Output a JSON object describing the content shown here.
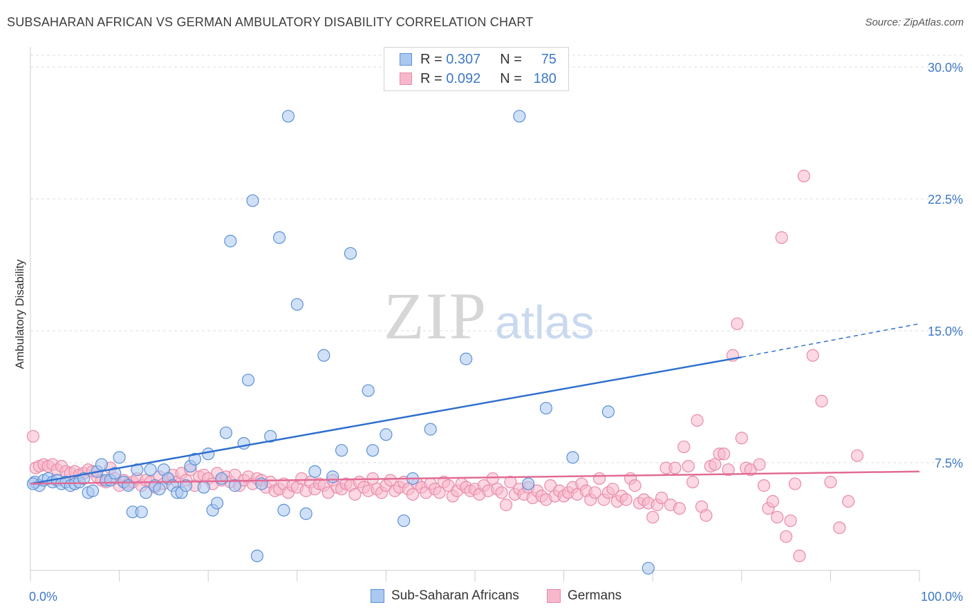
{
  "title": "SUBSAHARAN AFRICAN VS GERMAN AMBULATORY DISABILITY CORRELATION CHART",
  "source": "Source: ZipAtlas.com",
  "watermark": {
    "zip": "ZIP",
    "atlas": "atlas"
  },
  "legend": {
    "rows": [
      {
        "r_label": "R =",
        "r_value": "0.307",
        "n_label": "N =",
        "n_value": "75"
      },
      {
        "r_label": "R =",
        "r_value": "0.092",
        "n_label": "N =",
        "n_value": "180"
      }
    ]
  },
  "colors": {
    "blue_fill": "#aac8f0",
    "blue_stroke": "#5b8fd6",
    "blue_line": "#2f6fcf",
    "pink_fill": "#f7b8cc",
    "pink_stroke": "#e88aa8",
    "pink_line": "#e26a95",
    "tick_label": "#3e78c8",
    "grid": "#dddddd"
  },
  "chart_data": {
    "type": "scatter",
    "xlabel": "",
    "ylabel": "Ambulatory Disability",
    "xlim": [
      0,
      100
    ],
    "ylim": [
      0,
      31
    ],
    "x_tick_labels": [
      "0.0%",
      "100.0%"
    ],
    "y_ticks": [
      7.5,
      15.0,
      22.5,
      30.0
    ],
    "y_tick_labels": [
      "7.5%",
      "15.0%",
      "22.5%",
      "30.0%"
    ],
    "grid": "horizontal dashed",
    "legend_position": "top-center",
    "series": [
      {
        "name": "Sub-Saharan Africans",
        "color": "#aac8f0",
        "trend": {
          "x0": 0,
          "y0": 6.3,
          "x1": 80,
          "y1": 13.5,
          "dashed_to_x": 100,
          "dashed_y": 15.4
        },
        "points": [
          [
            0.5,
            6.4
          ],
          [
            1,
            6.2
          ],
          [
            1.5,
            6.5
          ],
          [
            2,
            6.6
          ],
          [
            2.5,
            6.4
          ],
          [
            3,
            6.5
          ],
          [
            3.5,
            6.3
          ],
          [
            4,
            6.4
          ],
          [
            4.5,
            6.2
          ],
          [
            5,
            6.3
          ],
          [
            5.5,
            6.4
          ],
          [
            6,
            6.6
          ],
          [
            6.5,
            5.8
          ],
          [
            7,
            5.9
          ],
          [
            7.5,
            7.0
          ],
          [
            8,
            7.4
          ],
          [
            8.5,
            6.5
          ],
          [
            9,
            6.5
          ],
          [
            9.5,
            6.9
          ],
          [
            10,
            7.8
          ],
          [
            10.5,
            6.4
          ],
          [
            11,
            6.2
          ],
          [
            11.5,
            4.7
          ],
          [
            12,
            7.1
          ],
          [
            12.5,
            4.7
          ],
          [
            13,
            5.8
          ],
          [
            13.5,
            7.1
          ],
          [
            14,
            6.2
          ],
          [
            14.5,
            6.0
          ],
          [
            15,
            7.1
          ],
          [
            15.5,
            6.6
          ],
          [
            16,
            6.2
          ],
          [
            16.5,
            5.8
          ],
          [
            17,
            5.8
          ],
          [
            17.5,
            6.2
          ],
          [
            18,
            7.3
          ],
          [
            18.5,
            7.7
          ],
          [
            19.5,
            6.1
          ],
          [
            20,
            8.0
          ],
          [
            20.5,
            4.8
          ],
          [
            21,
            5.2
          ],
          [
            21.5,
            6.6
          ],
          [
            22,
            9.2
          ],
          [
            22.5,
            20.1
          ],
          [
            23,
            6.2
          ],
          [
            24,
            8.6
          ],
          [
            24.5,
            12.2
          ],
          [
            25,
            22.4
          ],
          [
            25.5,
            2.2
          ],
          [
            26,
            6.3
          ],
          [
            27,
            9.0
          ],
          [
            28,
            20.3
          ],
          [
            28.5,
            4.8
          ],
          [
            29,
            27.2
          ],
          [
            30,
            16.5
          ],
          [
            31,
            4.6
          ],
          [
            32,
            7.0
          ],
          [
            33,
            13.6
          ],
          [
            34,
            6.7
          ],
          [
            35,
            8.2
          ],
          [
            36,
            19.4
          ],
          [
            38,
            11.6
          ],
          [
            38.5,
            8.2
          ],
          [
            40,
            9.1
          ],
          [
            42,
            4.2
          ],
          [
            43,
            6.6
          ],
          [
            45,
            9.4
          ],
          [
            49,
            13.4
          ],
          [
            55,
            27.2
          ],
          [
            56,
            6.3
          ],
          [
            58,
            10.6
          ],
          [
            61,
            7.8
          ],
          [
            65,
            10.4
          ],
          [
            69.5,
            1.5
          ],
          [
            0.3,
            6.3
          ]
        ]
      },
      {
        "name": "Germans",
        "color": "#f7b8cc",
        "trend": {
          "x0": 0,
          "y0": 6.3,
          "x1": 100,
          "y1": 7.0
        },
        "points": [
          [
            0.3,
            9.0
          ],
          [
            0.6,
            7.2
          ],
          [
            1,
            7.3
          ],
          [
            1.5,
            7.4
          ],
          [
            2,
            7.3
          ],
          [
            2.5,
            7.4
          ],
          [
            3,
            7.1
          ],
          [
            3.5,
            7.3
          ],
          [
            4,
            7.0
          ],
          [
            4.5,
            6.9
          ],
          [
            5,
            7.0
          ],
          [
            5.5,
            6.8
          ],
          [
            6,
            6.9
          ],
          [
            6.5,
            7.1
          ],
          [
            7,
            7.0
          ],
          [
            7.5,
            6.7
          ],
          [
            8,
            6.5
          ],
          [
            8.5,
            6.4
          ],
          [
            9,
            7.2
          ],
          [
            9.5,
            6.6
          ],
          [
            10,
            6.2
          ],
          [
            10.5,
            6.5
          ],
          [
            11,
            6.3
          ],
          [
            11.5,
            6.4
          ],
          [
            12,
            6.6
          ],
          [
            12.5,
            6.2
          ],
          [
            13,
            6.5
          ],
          [
            13.5,
            6.4
          ],
          [
            14,
            6.1
          ],
          [
            14.5,
            6.7
          ],
          [
            15,
            6.3
          ],
          [
            15.5,
            6.6
          ],
          [
            16,
            6.8
          ],
          [
            16.5,
            6.4
          ],
          [
            17,
            6.9
          ],
          [
            17.5,
            6.5
          ],
          [
            18,
            7.1
          ],
          [
            18.5,
            6.2
          ],
          [
            19,
            6.7
          ],
          [
            19.5,
            6.8
          ],
          [
            20,
            6.6
          ],
          [
            20.5,
            6.3
          ],
          [
            21,
            6.9
          ],
          [
            21.5,
            6.5
          ],
          [
            22,
            6.7
          ],
          [
            22.5,
            6.4
          ],
          [
            23,
            6.8
          ],
          [
            23.5,
            6.2
          ],
          [
            24,
            6.5
          ],
          [
            24.5,
            6.7
          ],
          [
            25,
            6.3
          ],
          [
            25.5,
            6.6
          ],
          [
            26,
            6.5
          ],
          [
            26.5,
            6.1
          ],
          [
            27,
            6.4
          ],
          [
            27.5,
            5.9
          ],
          [
            28,
            6.0
          ],
          [
            28.5,
            6.3
          ],
          [
            29,
            5.8
          ],
          [
            29.5,
            6.2
          ],
          [
            30,
            6.1
          ],
          [
            30.5,
            6.6
          ],
          [
            31,
            5.9
          ],
          [
            31.5,
            6.4
          ],
          [
            32,
            6.0
          ],
          [
            32.5,
            6.3
          ],
          [
            33,
            6.2
          ],
          [
            33.5,
            5.8
          ],
          [
            34,
            6.5
          ],
          [
            34.5,
            6.1
          ],
          [
            35,
            6.0
          ],
          [
            35.5,
            6.3
          ],
          [
            36,
            6.2
          ],
          [
            36.5,
            5.7
          ],
          [
            37,
            6.4
          ],
          [
            37.5,
            6.1
          ],
          [
            38,
            5.9
          ],
          [
            38.5,
            6.6
          ],
          [
            39,
            6.0
          ],
          [
            39.5,
            5.8
          ],
          [
            40,
            6.2
          ],
          [
            40.5,
            6.5
          ],
          [
            41,
            5.9
          ],
          [
            41.5,
            6.1
          ],
          [
            42,
            6.4
          ],
          [
            42.5,
            6.0
          ],
          [
            43,
            5.7
          ],
          [
            43.5,
            6.3
          ],
          [
            44,
            6.1
          ],
          [
            44.5,
            5.8
          ],
          [
            45,
            6.3
          ],
          [
            45.5,
            6.0
          ],
          [
            46,
            5.8
          ],
          [
            46.5,
            6.4
          ],
          [
            47,
            6.2
          ],
          [
            47.5,
            5.6
          ],
          [
            48,
            5.9
          ],
          [
            48.5,
            6.3
          ],
          [
            49,
            6.1
          ],
          [
            49.5,
            5.9
          ],
          [
            50,
            6.0
          ],
          [
            50.5,
            5.7
          ],
          [
            51,
            6.2
          ],
          [
            51.5,
            5.9
          ],
          [
            52,
            6.6
          ],
          [
            52.5,
            6.0
          ],
          [
            53,
            5.8
          ],
          [
            53.5,
            5.1
          ],
          [
            54,
            6.4
          ],
          [
            54.5,
            5.7
          ],
          [
            55,
            6.0
          ],
          [
            55.5,
            5.7
          ],
          [
            56,
            6.1
          ],
          [
            56.5,
            5.5
          ],
          [
            57,
            5.9
          ],
          [
            57.5,
            5.6
          ],
          [
            58,
            5.4
          ],
          [
            58.5,
            6.2
          ],
          [
            59,
            5.6
          ],
          [
            59.5,
            5.9
          ],
          [
            60,
            5.6
          ],
          [
            60.5,
            5.8
          ],
          [
            61,
            6.1
          ],
          [
            61.5,
            5.7
          ],
          [
            62,
            6.3
          ],
          [
            62.5,
            5.9
          ],
          [
            63,
            5.4
          ],
          [
            63.5,
            5.8
          ],
          [
            64,
            6.6
          ],
          [
            64.5,
            5.4
          ],
          [
            65,
            5.8
          ],
          [
            65.5,
            6.0
          ],
          [
            66,
            5.3
          ],
          [
            66.5,
            5.6
          ],
          [
            67,
            5.4
          ],
          [
            67.5,
            6.6
          ],
          [
            68,
            6.2
          ],
          [
            68.5,
            5.2
          ],
          [
            69,
            5.4
          ],
          [
            69.5,
            5.2
          ],
          [
            70,
            4.4
          ],
          [
            70.5,
            5.1
          ],
          [
            71,
            5.5
          ],
          [
            71.5,
            7.2
          ],
          [
            72,
            5.1
          ],
          [
            72.5,
            7.2
          ],
          [
            73,
            4.9
          ],
          [
            73.5,
            8.4
          ],
          [
            74,
            7.3
          ],
          [
            74.5,
            6.4
          ],
          [
            75,
            9.9
          ],
          [
            75.5,
            5.0
          ],
          [
            76,
            4.5
          ],
          [
            76.5,
            7.3
          ],
          [
            77,
            7.4
          ],
          [
            77.5,
            8.0
          ],
          [
            78,
            8.0
          ],
          [
            78.5,
            7.1
          ],
          [
            79,
            13.6
          ],
          [
            79.5,
            15.4
          ],
          [
            80,
            8.9
          ],
          [
            80.5,
            7.2
          ],
          [
            81,
            7.1
          ],
          [
            82,
            7.4
          ],
          [
            82.5,
            6.2
          ],
          [
            83,
            4.9
          ],
          [
            83.5,
            5.3
          ],
          [
            84,
            4.4
          ],
          [
            84.5,
            20.3
          ],
          [
            85,
            3.3
          ],
          [
            85.5,
            4.2
          ],
          [
            86,
            6.3
          ],
          [
            86.5,
            2.2
          ],
          [
            87,
            23.8
          ],
          [
            88,
            13.6
          ],
          [
            89,
            11.0
          ],
          [
            90,
            6.4
          ],
          [
            91,
            3.8
          ],
          [
            92,
            5.3
          ],
          [
            93,
            7.9
          ]
        ]
      }
    ]
  }
}
